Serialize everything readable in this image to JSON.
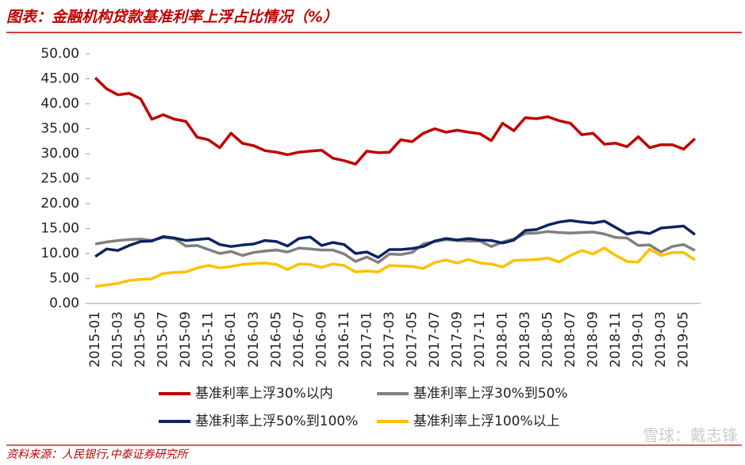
{
  "chart_data": {
    "type": "line",
    "title": "图表：金融机构贷款基准利率上浮占比情况（%）",
    "source": "资料来源：人民银行,中泰证券研究所",
    "watermark": "雪球：戴志锋",
    "categories": [
      "2015-01",
      null,
      "2015-03",
      null,
      "2015-05",
      null,
      "2015-07",
      null,
      "2015-09",
      null,
      "2015-11",
      null,
      "2016-01",
      null,
      "2016-03",
      null,
      "2016-05",
      null,
      "2016-07",
      null,
      "2016-09",
      null,
      "2016-11",
      null,
      "2017-01",
      null,
      "2017-03",
      null,
      "2017-05",
      null,
      "2017-07",
      null,
      "2017-09",
      null,
      "2017-11",
      null,
      "2018-01",
      null,
      "2018-03",
      null,
      "2018-05",
      null,
      "2018-07",
      null,
      "2018-09",
      null,
      "2018-11",
      null,
      "2019-01",
      null,
      "2019-03",
      null,
      "2019-05",
      null
    ],
    "ylim": [
      0,
      50
    ],
    "yticks": [
      {
        "value": 0,
        "label": "0.00"
      },
      {
        "value": 5,
        "label": "5.00"
      },
      {
        "value": 10,
        "label": "10.00"
      },
      {
        "value": 15,
        "label": "15.00"
      },
      {
        "value": 20,
        "label": "20.00"
      },
      {
        "value": 25,
        "label": "25.00"
      },
      {
        "value": 30,
        "label": "30.00"
      },
      {
        "value": 35,
        "label": "35.00"
      },
      {
        "value": 40,
        "label": "40.00"
      },
      {
        "value": 45,
        "label": "45.00"
      },
      {
        "value": 50,
        "label": "50.00"
      }
    ],
    "grid": false,
    "series": [
      {
        "name": "基准利率上浮30%以内",
        "color": "#c00000",
        "values": [
          45.2,
          43.0,
          41.8,
          42.1,
          41.0,
          36.9,
          37.8,
          36.9,
          36.5,
          33.3,
          32.8,
          31.2,
          34.1,
          32.1,
          31.6,
          30.6,
          30.3,
          29.8,
          30.3,
          30.5,
          30.7,
          29.1,
          28.6,
          27.9,
          30.5,
          30.2,
          30.3,
          32.8,
          32.4,
          34.1,
          35.0,
          34.3,
          34.7,
          34.3,
          34.0,
          32.6,
          36.1,
          34.6,
          37.2,
          37.0,
          37.4,
          36.6,
          36.1,
          33.8,
          34.1,
          31.9,
          32.1,
          31.4,
          33.4,
          31.2,
          31.8,
          31.8,
          30.9,
          33.0
        ]
      },
      {
        "name": "基准利率上浮30%到50%",
        "color": "#808080",
        "values": [
          11.9,
          12.3,
          12.6,
          12.8,
          12.9,
          12.6,
          13.2,
          13.0,
          11.5,
          11.6,
          10.8,
          10.0,
          10.4,
          9.6,
          10.2,
          10.5,
          10.7,
          10.3,
          11.1,
          10.9,
          10.7,
          10.7,
          9.9,
          8.4,
          9.3,
          8.2,
          9.9,
          9.8,
          10.2,
          11.9,
          12.4,
          12.8,
          12.6,
          12.5,
          12.5,
          11.4,
          12.3,
          12.9,
          14.0,
          14.1,
          14.4,
          14.2,
          14.1,
          14.2,
          14.3,
          13.9,
          13.2,
          13.1,
          11.6,
          11.7,
          10.3,
          11.4,
          11.8,
          10.6
        ]
      },
      {
        "name": "基准利率上浮50%到100%",
        "color": "#0c2461",
        "values": [
          9.4,
          10.9,
          10.6,
          11.6,
          12.4,
          12.5,
          13.4,
          13.1,
          12.6,
          12.8,
          13.0,
          11.8,
          11.4,
          11.7,
          11.9,
          12.6,
          12.4,
          11.5,
          13.0,
          13.3,
          11.6,
          12.2,
          11.8,
          10.0,
          10.3,
          9.2,
          10.8,
          10.8,
          11.0,
          11.4,
          12.5,
          13.0,
          12.7,
          13.0,
          12.7,
          12.6,
          12.1,
          12.7,
          14.6,
          14.8,
          15.7,
          16.3,
          16.6,
          16.3,
          16.1,
          16.5,
          15.2,
          13.9,
          14.3,
          14.0,
          15.1,
          15.3,
          15.5,
          13.8
        ]
      },
      {
        "name": "基准利率上浮100%以上",
        "color": "#ffc000",
        "values": [
          3.4,
          3.7,
          4.0,
          4.6,
          4.8,
          4.9,
          6.0,
          6.2,
          6.3,
          7.1,
          7.6,
          7.1,
          7.4,
          7.8,
          8.0,
          8.1,
          7.8,
          6.8,
          7.9,
          7.8,
          7.2,
          7.9,
          7.6,
          6.3,
          6.5,
          6.3,
          7.6,
          7.5,
          7.4,
          7.0,
          8.2,
          8.7,
          8.1,
          8.8,
          8.1,
          7.9,
          7.3,
          8.6,
          8.7,
          8.8,
          9.1,
          8.3,
          9.6,
          10.6,
          9.9,
          11.1,
          9.6,
          8.4,
          8.3,
          10.9,
          9.6,
          10.2,
          10.2,
          8.7
        ]
      }
    ]
  }
}
